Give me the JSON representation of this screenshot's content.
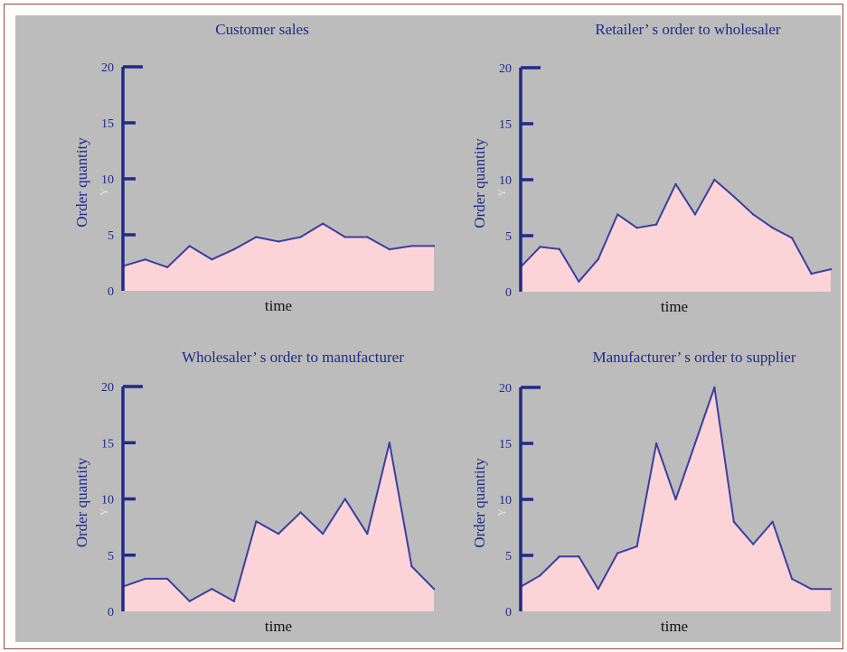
{
  "chart_data": [
    {
      "type": "area",
      "title": "Customer sales",
      "xlabel": "time",
      "ylabel": "Order quantity",
      "ylim": [
        0,
        20
      ],
      "yticks": [
        0,
        5,
        10,
        15,
        20
      ],
      "ymarker": "Y",
      "x": [
        0,
        1,
        2,
        3,
        4,
        5,
        6,
        7,
        8,
        9,
        10,
        11,
        12,
        13,
        14
      ],
      "values": [
        2.2,
        2.8,
        2.1,
        4.0,
        2.8,
        3.7,
        4.8,
        4.4,
        4.8,
        6.0,
        4.8,
        4.8,
        3.7,
        4.0,
        4.0
      ]
    },
    {
      "type": "area",
      "title": "Retailer’ s order to wholesaler",
      "xlabel": "time",
      "ylabel": "Order quantity",
      "ylim": [
        0,
        20
      ],
      "yticks": [
        0,
        5,
        10,
        15,
        20
      ],
      "ymarker": "Y",
      "x": [
        0,
        1,
        2,
        3,
        4,
        5,
        6,
        7,
        8,
        9,
        10,
        11,
        12,
        13,
        14,
        15,
        16
      ],
      "values": [
        2.2,
        4.0,
        3.8,
        0.9,
        2.9,
        6.9,
        5.7,
        6.0,
        9.6,
        6.9,
        10.0,
        8.5,
        6.9,
        5.7,
        4.8,
        1.6,
        2.0
      ]
    },
    {
      "type": "area",
      "title": "Wholesaler’ s order to manufacturer",
      "xlabel": "time",
      "ylabel": "Order quantity",
      "ylim": [
        0,
        20
      ],
      "yticks": [
        0,
        5,
        10,
        15,
        20
      ],
      "ymarker": "Y",
      "x": [
        0,
        1,
        2,
        3,
        4,
        5,
        6,
        7,
        8,
        9,
        10,
        11,
        12,
        13,
        14
      ],
      "values": [
        2.2,
        2.9,
        2.9,
        0.9,
        2.0,
        0.9,
        8.0,
        6.9,
        8.8,
        6.9,
        10.0,
        6.9,
        15.0,
        4.0,
        2.0
      ]
    },
    {
      "type": "area",
      "title": "Manufacturer’ s order to supplier",
      "xlabel": "time",
      "ylabel": "Order quantity",
      "ylim": [
        0,
        20
      ],
      "yticks": [
        0,
        5,
        10,
        15,
        20
      ],
      "ymarker": "Y",
      "x": [
        0,
        1,
        2,
        3,
        4,
        5,
        6,
        7,
        8,
        9,
        10,
        11,
        12,
        13,
        14,
        15,
        16
      ],
      "values": [
        2.2,
        3.2,
        4.9,
        4.9,
        2.0,
        5.2,
        5.8,
        15.0,
        10.0,
        15.0,
        20.0,
        8.0,
        6.0,
        8.0,
        2.9,
        2.0,
        2.0
      ]
    }
  ]
}
